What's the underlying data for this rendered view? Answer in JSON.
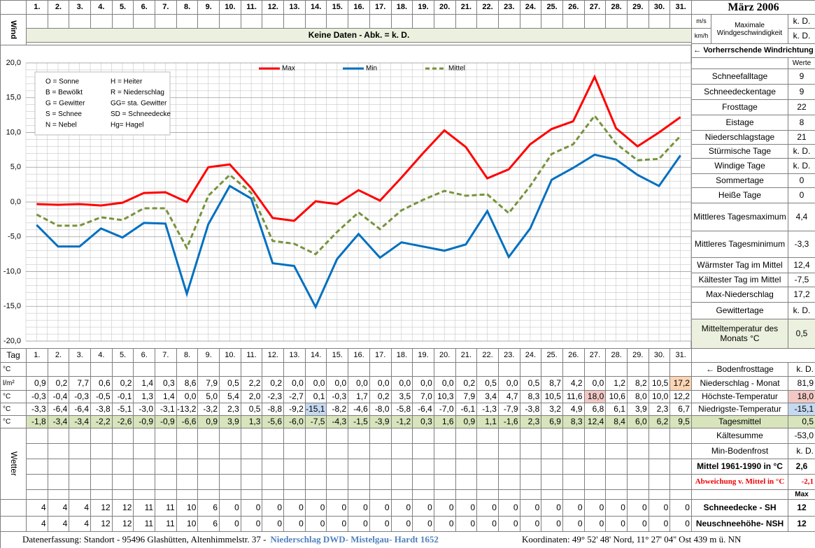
{
  "header": {
    "days": [
      "1.",
      "2.",
      "3.",
      "4.",
      "5.",
      "6.",
      "7.",
      "8.",
      "9.",
      "10.",
      "11.",
      "12.",
      "13.",
      "14.",
      "15.",
      "16.",
      "17.",
      "18.",
      "19.",
      "20.",
      "21.",
      "22.",
      "23.",
      "24.",
      "25.",
      "26.",
      "27.",
      "28.",
      "29.",
      "30.",
      "31."
    ],
    "title": "März 2006"
  },
  "wind": {
    "label": "Wind",
    "message": "Keine Daten - Abk. = k. D.",
    "units": [
      "m/s",
      "km/h"
    ],
    "max_label": "Maximale Windgeschwindigkeit",
    "max_values": [
      "k. D.",
      "k. D."
    ],
    "direction": "← Vorherrschende Windrichtung"
  },
  "weather_codes": [
    "O = Sonne",
    "H = Heiter",
    "B = Bewölkt",
    "R = Niederschlag",
    "G = Gewitter",
    "GG= sta. Gewitter",
    "S = Schnee",
    "SD = Schneedecke",
    "N = Nebel",
    "Hg= Hagel"
  ],
  "chart_data": {
    "type": "line",
    "ylim": [
      -20,
      20
    ],
    "yticks": [
      {
        "value": 20,
        "label": "20,0"
      },
      {
        "value": 15,
        "label": "15,0"
      },
      {
        "value": 10,
        "label": "10,0"
      },
      {
        "value": 5,
        "label": "5,0"
      },
      {
        "value": 0,
        "label": "0,0"
      },
      {
        "value": -5,
        "label": "-5,0"
      },
      {
        "value": -10,
        "label": "-10,0"
      },
      {
        "value": -15,
        "label": "-15,0"
      },
      {
        "value": -20,
        "label": "-20,0"
      }
    ],
    "grid": true,
    "series": [
      {
        "name": "Max",
        "color": "#ff0000",
        "values": [
          -0.3,
          -0.4,
          -0.3,
          -0.5,
          -0.1,
          1.3,
          1.4,
          0.0,
          5.0,
          5.4,
          2.0,
          -2.3,
          -2.7,
          0.1,
          -0.3,
          1.7,
          0.2,
          3.5,
          7.0,
          10.3,
          7.9,
          3.4,
          4.7,
          8.3,
          10.5,
          11.6,
          18.0,
          10.6,
          8.0,
          10.0,
          12.2
        ],
        "value_labels": [
          "-0,3",
          "-0,4",
          "-0,3",
          "-0,5",
          "-0,1",
          "1,3",
          "1,4",
          "0,0",
          "5,0",
          "5,4",
          "2,0",
          "-2,3",
          "-2,7",
          "0,1",
          "-0,3",
          "1,7",
          "0,2",
          "3,5",
          "7,0",
          "10,3",
          "7,9",
          "3,4",
          "4,7",
          "8,3",
          "10,5",
          "11,6",
          "18,0",
          "10,6",
          "8,0",
          "10,0",
          "12,2"
        ]
      },
      {
        "name": "Min",
        "color": "#0070c0",
        "values": [
          -3.3,
          -6.4,
          -6.4,
          -3.8,
          -5.1,
          -3.0,
          -3.1,
          -13.2,
          -3.2,
          2.3,
          0.5,
          -8.8,
          -9.2,
          -15.1,
          -8.2,
          -4.6,
          -8.0,
          -5.8,
          -6.4,
          -7.0,
          -6.1,
          -1.3,
          -7.9,
          -3.8,
          3.2,
          4.9,
          6.8,
          6.1,
          3.9,
          2.3,
          6.7
        ],
        "value_labels": [
          "-3,3",
          "-6,4",
          "-6,4",
          "-3,8",
          "-5,1",
          "-3,0",
          "-3,1",
          "-13,2",
          "-3,2",
          "2,3",
          "0,5",
          "-8,8",
          "-9,2",
          "-15,1",
          "-8,2",
          "-4,6",
          "-8,0",
          "-5,8",
          "-6,4",
          "-7,0",
          "-6,1",
          "-1,3",
          "-7,9",
          "-3,8",
          "3,2",
          "4,9",
          "6,8",
          "6,1",
          "3,9",
          "2,3",
          "6,7"
        ]
      },
      {
        "name": "Mittel",
        "color": "#77933c",
        "dashed": true,
        "values": [
          -1.8,
          -3.4,
          -3.4,
          -2.2,
          -2.6,
          -0.9,
          -0.9,
          -6.6,
          0.9,
          3.9,
          1.3,
          -5.6,
          -6.0,
          -7.5,
          -4.3,
          -1.5,
          -3.9,
          -1.2,
          0.3,
          1.6,
          0.9,
          1.1,
          -1.6,
          2.3,
          6.9,
          8.3,
          12.4,
          8.4,
          6.0,
          6.2,
          9.5
        ],
        "value_labels": [
          "-1,8",
          "-3,4",
          "-3,4",
          "-2,2",
          "-2,6",
          "-0,9",
          "-0,9",
          "-6,6",
          "0,9",
          "3,9",
          "1,3",
          "-5,6",
          "-6,0",
          "-7,5",
          "-4,3",
          "-1,5",
          "-3,9",
          "-1,2",
          "0,3",
          "1,6",
          "0,9",
          "1,1",
          "-1,6",
          "2,3",
          "6,9",
          "8,3",
          "12,4",
          "8,4",
          "6,0",
          "6,2",
          "9,5"
        ]
      }
    ]
  },
  "summary": {
    "header": "Werte",
    "rows": [
      {
        "label": "Schneefalltage",
        "value": 9
      },
      {
        "label": "Schneedeckentage",
        "value": 9
      },
      {
        "label": "Frosttage",
        "value": 22
      },
      {
        "label": "Eistage",
        "value": 8
      },
      {
        "label": "Niederschlagstage",
        "value": 21
      },
      {
        "label": "Stürmische Tage",
        "value": "k. D."
      },
      {
        "label": "Windige Tage",
        "value": "k. D."
      },
      {
        "label": "Sommertage",
        "value": 0
      },
      {
        "label": "Heiße Tage",
        "value": 0
      },
      {
        "label": "Mittleres Tagesmaximum",
        "value": "4,4"
      },
      {
        "label": "Mittleres Tagesminimum",
        "value": "-3,3"
      },
      {
        "label": "Wärmster Tag im Mittel",
        "value": "12,4"
      },
      {
        "label": "Kältester Tag im Mittel",
        "value": "-7,5"
      },
      {
        "label": "Max-Niederschlag",
        "value": "17,2"
      },
      {
        "label": "Gewittertage",
        "value": "k. D."
      },
      {
        "label": "Mitteltemperatur des Monats °C",
        "value": "0,5"
      }
    ]
  },
  "table": {
    "tag_label": "Tag",
    "unit_labels": [
      "°C",
      "l/m²",
      "°C",
      "°C",
      "°C"
    ],
    "wetter_label": "Wetter",
    "precipitation": [
      "0,9",
      "0,2",
      "7,7",
      "0,6",
      "0,2",
      "1,4",
      "0,3",
      "8,6",
      "7,9",
      "0,5",
      "2,2",
      "0,2",
      "0,0",
      "0,0",
      "0,0",
      "0,0",
      "0,0",
      "0,0",
      "0,0",
      "0,0",
      "0,2",
      "0,5",
      "0,0",
      "0,5",
      "8,7",
      "4,2",
      "0,0",
      "1,2",
      "8,2",
      "10,5",
      "17,2"
    ],
    "snow_depth": [
      4,
      4,
      4,
      12,
      12,
      11,
      11,
      10,
      6,
      0,
      0,
      0,
      0,
      0,
      0,
      0,
      0,
      0,
      0,
      0,
      0,
      0,
      0,
      0,
      0,
      0,
      0,
      0,
      0,
      0,
      0
    ],
    "new_snow": [
      4,
      4,
      4,
      12,
      12,
      11,
      11,
      10,
      6,
      0,
      0,
      0,
      0,
      0,
      0,
      0,
      0,
      0,
      0,
      0,
      0,
      0,
      0,
      0,
      0,
      0,
      0,
      0,
      0,
      0,
      0
    ]
  },
  "month_stats": {
    "rows": [
      {
        "label": "← Bodenfrosttage",
        "value": "k. D."
      },
      {
        "label": "Niederschlag - Monat",
        "value": "81,9"
      },
      {
        "label": "Höchste-Temperatur",
        "value": "18,0"
      },
      {
        "label": "Niedrigste-Temperatur",
        "value": "-15,1"
      },
      {
        "label": "Tagesmittel",
        "value": "0,5"
      },
      {
        "label": "Kältesumme",
        "value": "-53,0"
      },
      {
        "label": "Min-Bodenfrost",
        "value": "k. D."
      },
      {
        "label": "Mittel 1961-1990 in °C",
        "value": "2,6"
      },
      {
        "label": "Abweichung v. Mittel in °C",
        "value": "-2,1"
      },
      {
        "value": "Max"
      },
      {
        "label": "Schneedecke - SH",
        "value": 12
      },
      {
        "label": "Neuschneehöhe- NSH",
        "value": 12
      }
    ]
  },
  "footer": {
    "left": "Datenerfassung:  Standort -  95496  Glashütten, Altenhimmelstr. 37 -",
    "source": "Niederschlag DWD- Mistelgau- Hardt 1652",
    "coordinates": "Koordinaten:  49° 52' 48' Nord,   11° 27' 04'' Ost   439 m ü. NN"
  }
}
